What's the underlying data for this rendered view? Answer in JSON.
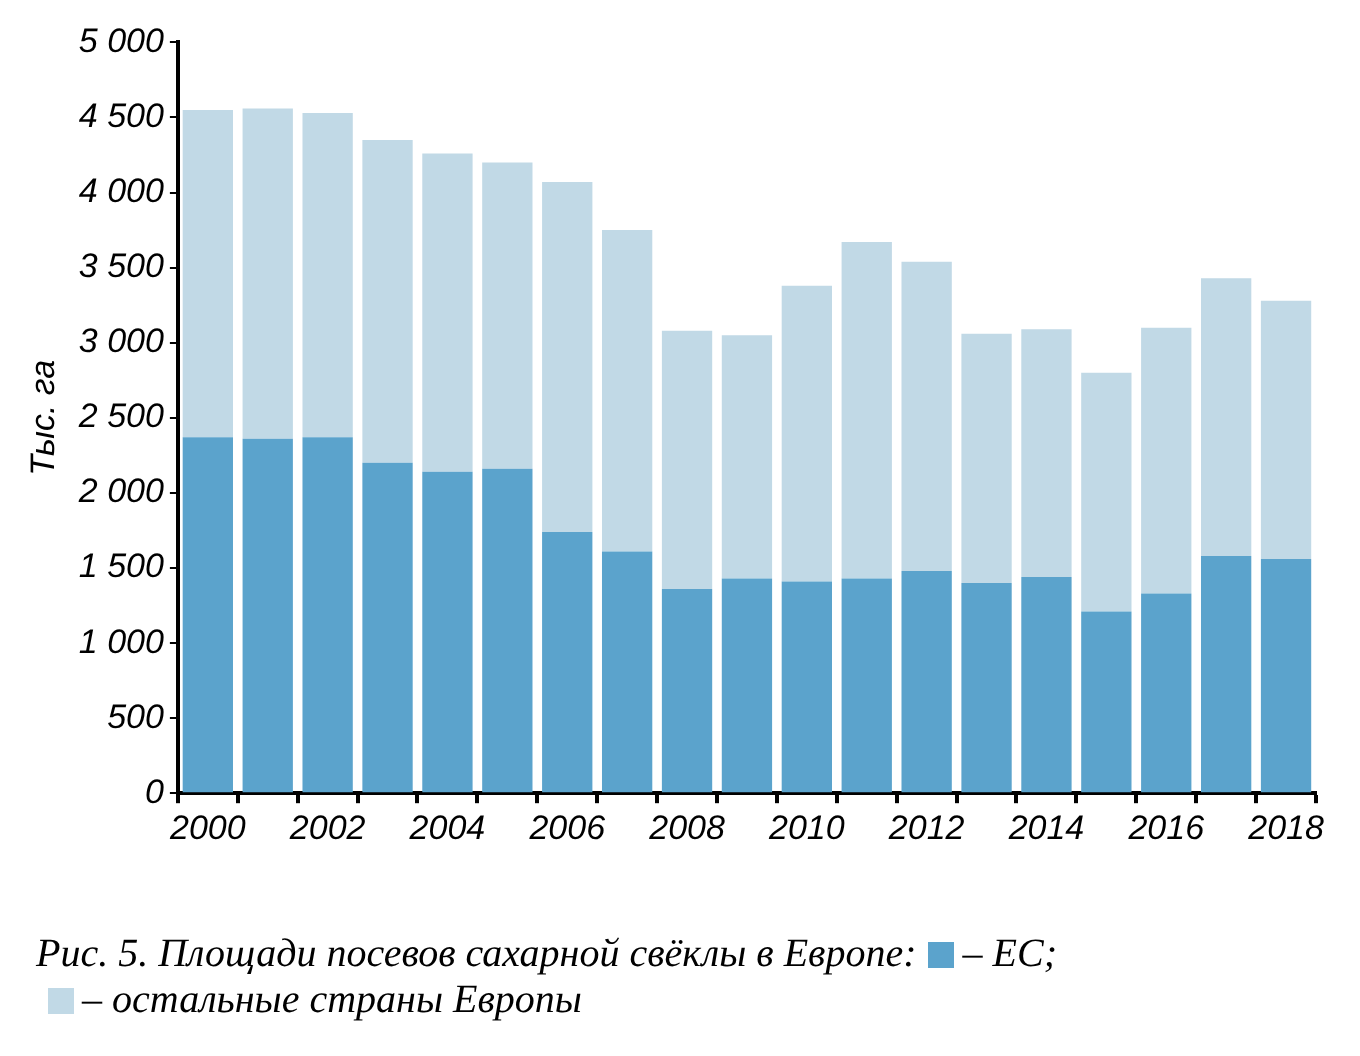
{
  "chart_data": {
    "type": "bar",
    "stacked": true,
    "title": "Рис. 5. Площади посевов сахарной свёклы в Европе:",
    "ylabel": "Тыс. га",
    "categories": [
      "2000",
      null,
      "2002",
      null,
      "2004",
      null,
      "2006",
      null,
      "2008",
      null,
      "2010",
      null,
      "2012",
      null,
      "2014",
      null,
      "2016",
      null,
      "2018"
    ],
    "series": [
      {
        "name": "– ЕС;",
        "color": "#5ba3cc",
        "values": [
          2370,
          2360,
          2370,
          2200,
          2140,
          2160,
          1740,
          1610,
          1360,
          1430,
          1410,
          1430,
          1480,
          1400,
          1440,
          1210,
          1330,
          1580,
          1560
        ]
      },
      {
        "name": "– остальные страны Европы",
        "color": "#c1d9e6",
        "values": [
          2180,
          2200,
          2160,
          2150,
          2120,
          2040,
          2330,
          2140,
          1720,
          1620,
          1970,
          2240,
          2060,
          1660,
          1650,
          1590,
          1770,
          1850,
          1720
        ]
      }
    ],
    "ylim": [
      0,
      5000
    ],
    "yticks": [
      0,
      500,
      {
        "value": 1000,
        "label": "1 000"
      },
      {
        "value": 1500,
        "label": "1 500"
      },
      {
        "value": 2000,
        "label": "2 000"
      },
      {
        "value": 2500,
        "label": "2 500"
      },
      {
        "value": 3000,
        "label": "3 000"
      },
      {
        "value": 3500,
        "label": "3 500"
      },
      {
        "value": 4000,
        "label": "4 000"
      },
      {
        "value": 4500,
        "label": "4 500"
      },
      {
        "value": 5000,
        "label": "5 000"
      }
    ],
    "grid": false,
    "legend": "bottom"
  }
}
